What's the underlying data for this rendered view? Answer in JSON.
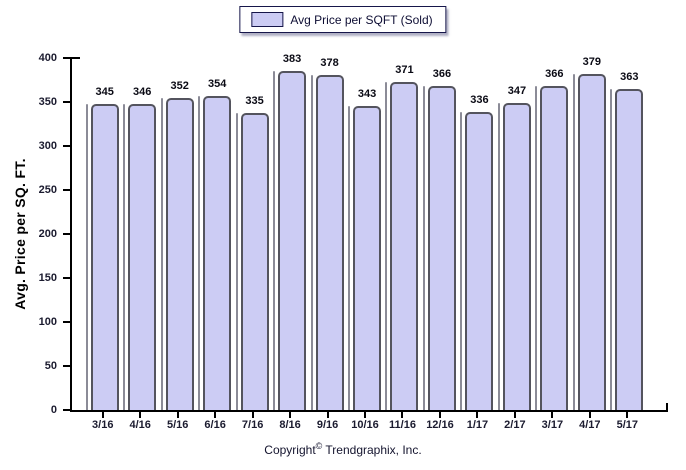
{
  "legend": {
    "label": "Avg Price per SQFT (Sold)"
  },
  "footer": {
    "prefix": "Copyright",
    "symbol": "©",
    "company": "Trendgraphix, Inc."
  },
  "colors": {
    "bar_fill": "#ccccf4",
    "bar_border": "#54545e",
    "bar_shadow": "#8b8b97",
    "legend_border": "#16164a",
    "axis": "#000000",
    "text": "#1b1b2f"
  },
  "chart_data": {
    "type": "bar",
    "title": "",
    "legend_label": "Avg Price per SQFT (Sold)",
    "legend_position": "top-center",
    "categories": [
      "3/16",
      "4/16",
      "5/16",
      "6/16",
      "7/16",
      "8/16",
      "9/16",
      "10/16",
      "11/16",
      "12/16",
      "1/17",
      "2/17",
      "3/17",
      "4/17",
      "5/17"
    ],
    "values": [
      345,
      346,
      352,
      354,
      335,
      383,
      378,
      343,
      371,
      366,
      336,
      347,
      366,
      379,
      363
    ],
    "xlabel": "",
    "ylabel": "Avg. Price per SQ. FT.",
    "ylim": [
      0,
      400
    ],
    "yticks": [
      0,
      50,
      100,
      150,
      200,
      250,
      300,
      350,
      400
    ],
    "grid": false,
    "value_labels_shown": true,
    "footer_text": "Copyright © Trendgraphix, Inc."
  }
}
